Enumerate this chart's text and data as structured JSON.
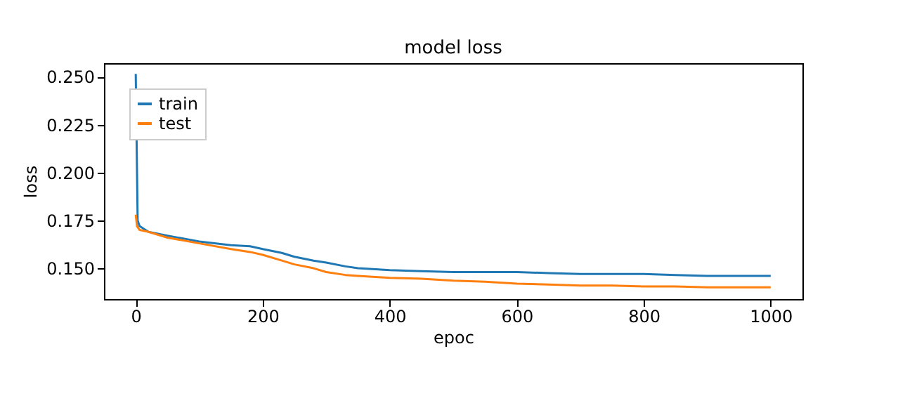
{
  "chart_data": {
    "type": "line",
    "title": "model loss",
    "xlabel": "epoc",
    "ylabel": "loss",
    "xlim": [
      -50,
      1050
    ],
    "xticks": [
      0,
      200,
      400,
      600,
      800,
      1000
    ],
    "ylim": [
      0.1339,
      0.2571
    ],
    "yticks": [
      {
        "value": 0.15,
        "label": "0.150"
      },
      0.175,
      {
        "value": 0.2,
        "label": "0.200"
      },
      0.225,
      {
        "value": 0.25,
        "label": "0.250"
      }
    ],
    "legend": "top left",
    "grid": false,
    "series": [
      {
        "name": "train",
        "color": "#1f77b4",
        "x": [
          0,
          3,
          6,
          20,
          50,
          100,
          150,
          180,
          200,
          230,
          250,
          280,
          300,
          330,
          350,
          400,
          450,
          500,
          550,
          600,
          650,
          700,
          750,
          800,
          850,
          900,
          950,
          1000
        ],
        "values": [
          0.2515,
          0.175,
          0.172,
          0.169,
          0.167,
          0.164,
          0.162,
          0.1615,
          0.16,
          0.158,
          0.156,
          0.154,
          0.153,
          0.151,
          0.15,
          0.149,
          0.1485,
          0.148,
          0.148,
          0.148,
          0.1475,
          0.147,
          0.147,
          0.147,
          0.1465,
          0.146,
          0.146,
          0.146
        ]
      },
      {
        "name": "test",
        "color": "#ff7f0e",
        "x": [
          0,
          2,
          6,
          20,
          50,
          100,
          150,
          180,
          200,
          230,
          250,
          280,
          300,
          330,
          350,
          400,
          450,
          500,
          550,
          600,
          650,
          700,
          750,
          800,
          850,
          900,
          950,
          1000
        ],
        "values": [
          0.178,
          0.172,
          0.17,
          0.169,
          0.166,
          0.163,
          0.16,
          0.1585,
          0.157,
          0.154,
          0.152,
          0.15,
          0.148,
          0.1465,
          0.146,
          0.145,
          0.1445,
          0.1435,
          0.143,
          0.142,
          0.1415,
          0.141,
          0.141,
          0.1405,
          0.1405,
          0.14,
          0.14,
          0.14
        ]
      }
    ]
  }
}
